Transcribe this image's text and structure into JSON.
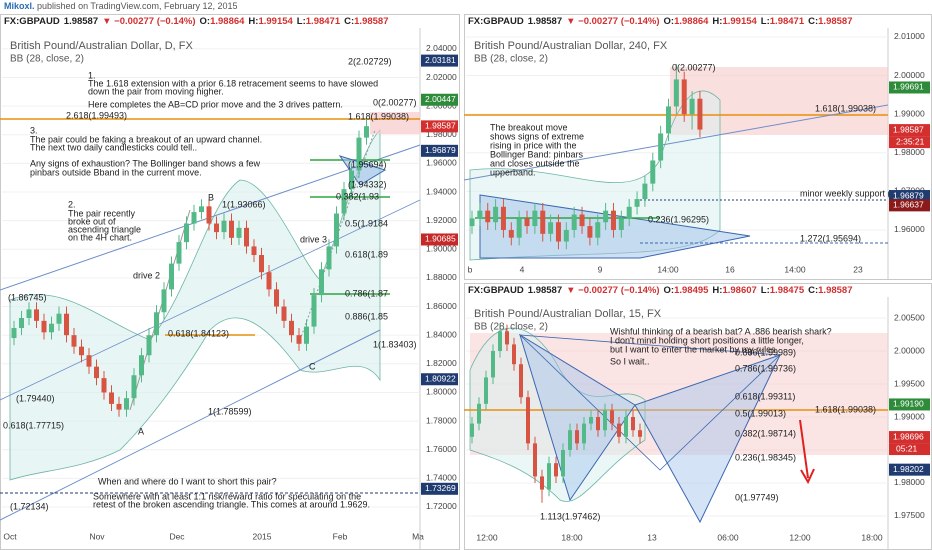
{
  "header": {
    "author": "Mikoxl.",
    "note": "published on TradingView.com, February 12, 2015"
  },
  "panels": [
    {
      "type": "candlestick",
      "quote": {
        "symbol": "FX:GBPAUD",
        "last": "1.98587",
        "change": "▼ −0.00277 (−0.14%)",
        "o_label": "O:",
        "o": "1.98864",
        "h_label": "H:",
        "h": "1.99154",
        "l_label": "L:",
        "l": "1.98471",
        "c_label": "C:",
        "c": "1.98587"
      },
      "title": "British Pound/Australian Dollar, D, FX",
      "indicator": "BB (28, close, 2)",
      "ylim": [
        1.706,
        2.049
      ],
      "yticks": [
        {
          "value": 2.04,
          "label": "2.04000"
        },
        {
          "value": 2.02,
          "label": "2.02000"
        },
        {
          "value": 2.0,
          "label": "2.00000"
        },
        {
          "value": 1.98,
          "label": "1.98000"
        },
        {
          "value": 1.96,
          "label": "1.96000"
        },
        {
          "value": 1.94,
          "label": "1.94000"
        },
        {
          "value": 1.92,
          "label": "1.92000"
        },
        {
          "value": 1.9,
          "label": "1.90000"
        },
        {
          "value": 1.88,
          "label": "1.88000"
        },
        {
          "value": 1.86,
          "label": "1.86000"
        },
        {
          "value": 1.84,
          "label": "1.84000"
        },
        {
          "value": 1.82,
          "label": "1.82000"
        },
        {
          "value": 1.8,
          "label": "1.80000"
        },
        {
          "value": 1.78,
          "label": "1.78000"
        },
        {
          "value": 1.76,
          "label": "1.76000"
        },
        {
          "value": 1.74,
          "label": "1.74000"
        },
        {
          "value": 1.72,
          "label": "1.72000"
        }
      ],
      "xlabels": [
        "Oct",
        "Nov",
        "Dec",
        "2015",
        "Feb",
        "Ma"
      ],
      "price_tags": [
        {
          "value": 2.03181,
          "color": "#1f3b70"
        },
        {
          "value": 2.00447,
          "color": "#2e8b3a"
        },
        {
          "value": 1.98587,
          "color": "#d32f2f"
        },
        {
          "value": 1.96879,
          "color": "#1f3b70"
        },
        {
          "value": 1.90685,
          "color": "#c62828"
        },
        {
          "value": 1.80922,
          "color": "#1f3b70"
        },
        {
          "value": 1.73269,
          "color": "#1f3b70"
        }
      ],
      "candles": [
        [
          1.838,
          1.85,
          1.833,
          1.845
        ],
        [
          1.845,
          1.857,
          1.84,
          1.852
        ],
        [
          1.852,
          1.863,
          1.847,
          1.858
        ],
        [
          1.858,
          1.863,
          1.845,
          1.85
        ],
        [
          1.85,
          1.855,
          1.837,
          1.842
        ],
        [
          1.842,
          1.853,
          1.837,
          1.848
        ],
        [
          1.848,
          1.86,
          1.843,
          1.855
        ],
        [
          1.855,
          1.86,
          1.835,
          1.84
        ],
        [
          1.84,
          1.845,
          1.827,
          1.832
        ],
        [
          1.832,
          1.837,
          1.821,
          1.826
        ],
        [
          1.826,
          1.831,
          1.813,
          1.818
        ],
        [
          1.818,
          1.823,
          1.805,
          1.81
        ],
        [
          1.81,
          1.815,
          1.795,
          1.8
        ],
        [
          1.8,
          1.805,
          1.787,
          1.792
        ],
        [
          1.792,
          1.797,
          1.783,
          1.788
        ],
        [
          1.788,
          1.801,
          1.783,
          1.796
        ],
        [
          1.796,
          1.817,
          1.791,
          1.812
        ],
        [
          1.812,
          1.831,
          1.807,
          1.826
        ],
        [
          1.826,
          1.845,
          1.821,
          1.84
        ],
        [
          1.84,
          1.861,
          1.835,
          1.856
        ],
        [
          1.856,
          1.877,
          1.851,
          1.872
        ],
        [
          1.872,
          1.895,
          1.867,
          1.89
        ],
        [
          1.89,
          1.91,
          1.885,
          1.905
        ],
        [
          1.905,
          1.923,
          1.9,
          1.918
        ],
        [
          1.918,
          1.931,
          1.913,
          1.926
        ],
        [
          1.926,
          1.935,
          1.921,
          1.93
        ],
        [
          1.93,
          1.935,
          1.913,
          1.918
        ],
        [
          1.918,
          1.923,
          1.907,
          1.912
        ],
        [
          1.912,
          1.925,
          1.907,
          1.92
        ],
        [
          1.92,
          1.925,
          1.903,
          1.908
        ],
        [
          1.908,
          1.92,
          1.903,
          1.915
        ],
        [
          1.915,
          1.92,
          1.897,
          1.902
        ],
        [
          1.902,
          1.907,
          1.891,
          1.896
        ],
        [
          1.896,
          1.901,
          1.879,
          1.884
        ],
        [
          1.884,
          1.889,
          1.867,
          1.872
        ],
        [
          1.872,
          1.877,
          1.855,
          1.86
        ],
        [
          1.86,
          1.865,
          1.845,
          1.85
        ],
        [
          1.85,
          1.855,
          1.835,
          1.84
        ],
        [
          1.84,
          1.845,
          1.829,
          1.834
        ],
        [
          1.834,
          1.851,
          1.829,
          1.846
        ],
        [
          1.846,
          1.873,
          1.841,
          1.868
        ],
        [
          1.868,
          1.891,
          1.863,
          1.886
        ],
        [
          1.886,
          1.907,
          1.881,
          1.902
        ],
        [
          1.902,
          1.93,
          1.897,
          1.925
        ],
        [
          1.925,
          1.947,
          1.92,
          1.942
        ],
        [
          1.942,
          1.96,
          1.937,
          1.955
        ],
        [
          1.955,
          1.983,
          1.95,
          1.978
        ],
        [
          1.978,
          1.991,
          1.973,
          1.986
        ]
      ],
      "notes": [
        "2(2.02729)",
        "1.",
        "The 1.618 extension with a prior 6.18 retracement seems to have slowed",
        "down the pair from moving higher.",
        "Here completes the AB=CD prior move and the 3 drives pattern.",
        "0(2.00277)",
        "2.618(1.99493)",
        "1.618(1.99038)",
        "3.",
        "The pair could be faking a breakout of an upward channel.",
        "The next two daily candlesticks could tell..",
        "Any signs of exhaustion? The Bollinger band shows a few",
        "pinbars outside Bband in the current move.",
        "(1.95694)",
        "(1.94332)",
        "0.382(1.93",
        "B",
        "1(1.93066)",
        "2.",
        "The pair recently",
        "broke out of",
        "ascending triangle",
        "on the 4H chart.",
        "0.5(1.9184",
        "drive 3",
        "0.618(1.89",
        "drive 2",
        "(1.86745)",
        "0.786(1.87",
        "0.886(1.85",
        "0.618(1.84123)",
        "1(1.83403)",
        "C",
        "(1.79440)",
        "1(1.78599)",
        "0.618(1.77715)",
        "A",
        "When and where do I want to short this pair?",
        "Somewhere with at least 1:1 risk/reward ratio for speculating on the",
        "retest of the broken ascending triangle. This comes at around 1.9629.",
        "(1.72134)"
      ]
    },
    {
      "type": "candlestick",
      "quote": {
        "symbol": "FX:GBPAUD",
        "last": "1.98587",
        "change": "▼ −0.00277 (−0.14%)",
        "o_label": "O:",
        "o": "1.98864",
        "h_label": "H:",
        "h": "1.99154",
        "l_label": "L:",
        "l": "1.98471",
        "c_label": "C:",
        "c": "1.98587"
      },
      "title": "British Pound/Australian Dollar, 240, FX",
      "indicator": "BB (28, close, 2)",
      "ylim": [
        1.9517,
        2.0118
      ],
      "yticks": [
        {
          "value": 2.01,
          "label": "2.01000"
        },
        {
          "value": 2.0,
          "label": "2.00000"
        },
        {
          "value": 1.99,
          "label": "1.99000"
        },
        {
          "value": 1.98,
          "label": "1.98000"
        },
        {
          "value": 1.97,
          "label": "1.97000"
        },
        {
          "value": 1.96,
          "label": "1.96000"
        }
      ],
      "xlabels": [
        "b",
        "4",
        "9",
        "14:00",
        "16",
        "14:00",
        "23"
      ],
      "price_tags": [
        {
          "value": 1.99691,
          "color": "#2e8b3a"
        },
        {
          "value": 1.98587,
          "color": "#d32f2f"
        },
        {
          "value": 1.96879,
          "color": "#1f3b70"
        },
        {
          "value": 1.96637,
          "color": "#8b1a1a"
        }
      ],
      "countdown": "2:35:21",
      "candles": [
        [
          1.961,
          1.965,
          1.959,
          1.963
        ],
        [
          1.963,
          1.967,
          1.961,
          1.965
        ],
        [
          1.965,
          1.967,
          1.96,
          1.962
        ],
        [
          1.962,
          1.968,
          1.96,
          1.966
        ],
        [
          1.966,
          1.968,
          1.958,
          1.96
        ],
        [
          1.96,
          1.962,
          1.956,
          1.958
        ],
        [
          1.958,
          1.965,
          1.956,
          1.963
        ],
        [
          1.963,
          1.965,
          1.959,
          1.961
        ],
        [
          1.961,
          1.967,
          1.959,
          1.965
        ],
        [
          1.965,
          1.967,
          1.957,
          1.959
        ],
        [
          1.959,
          1.964,
          1.957,
          1.962
        ],
        [
          1.962,
          1.964,
          1.955,
          1.957
        ],
        [
          1.957,
          1.962,
          1.955,
          1.96
        ],
        [
          1.96,
          1.966,
          1.958,
          1.964
        ],
        [
          1.964,
          1.966,
          1.959,
          1.961
        ],
        [
          1.961,
          1.963,
          1.956,
          1.958
        ],
        [
          1.958,
          1.964,
          1.956,
          1.962
        ],
        [
          1.962,
          1.967,
          1.96,
          1.965
        ],
        [
          1.965,
          1.967,
          1.958,
          1.96
        ],
        [
          1.96,
          1.965,
          1.958,
          1.963
        ],
        [
          1.963,
          1.968,
          1.961,
          1.966
        ],
        [
          1.966,
          1.97,
          1.964,
          1.968
        ],
        [
          1.968,
          1.974,
          1.966,
          1.972
        ],
        [
          1.972,
          1.98,
          1.97,
          1.978
        ],
        [
          1.978,
          1.987,
          1.976,
          1.985
        ],
        [
          1.985,
          1.994,
          1.983,
          1.992
        ],
        [
          1.992,
          2.003,
          1.99,
          1.999
        ],
        [
          1.999,
          2.001,
          1.988,
          1.99
        ],
        [
          1.99,
          1.996,
          1.986,
          1.994
        ],
        [
          1.994,
          1.996,
          1.984,
          1.986
        ]
      ],
      "notes": [
        "0(2.00277)",
        "1.618(1.99038)",
        "The breakout move",
        "shows signs of extreme",
        "rising in price with the",
        "Bollinger Band: pinbars",
        "and closes outside the",
        "upperband.",
        "minor weekly support (pinbar)",
        "0.236(1.96295)",
        "1.272(1.95694)"
      ]
    },
    {
      "type": "candlestick",
      "quote": {
        "symbol": "FX:GBPAUD",
        "last": "1.98587",
        "change": "▼ −0.00277 (−0.14%)",
        "o_label": "O:",
        "o": "1.98495",
        "h_label": "H:",
        "h": "1.98607",
        "l_label": "L:",
        "l": "1.98475",
        "c_label": "C:",
        "c": "1.98587"
      },
      "title": "British Pound/Australian Dollar, 15, FX",
      "indicator": "BB (28, close, 2)",
      "ylim": [
        1.97318,
        2.00773
      ],
      "yticks": [
        {
          "value": 2.005,
          "label": "2.00500"
        },
        {
          "value": 2.0,
          "label": "2.00000"
        },
        {
          "value": 1.995,
          "label": "1.99500"
        },
        {
          "value": 1.99,
          "label": "1.99000"
        },
        {
          "value": 1.985,
          "label": "1.98500"
        },
        {
          "value": 1.98,
          "label": "1.98000"
        },
        {
          "value": 1.975,
          "label": "1.97500"
        }
      ],
      "xlabels": [
        "12:00",
        "18:00",
        "13",
        "06:00",
        "12:00",
        "18:00"
      ],
      "price_tags": [
        {
          "value": 1.9919,
          "label": "1.99190",
          "color": "#2e8b3a"
        },
        {
          "value": 1.98696,
          "color": "#d32f2f"
        },
        {
          "value": 1.98202,
          "color": "#1f3b70"
        }
      ],
      "countdown": "05:21",
      "candles": [
        [
          1.987,
          1.99,
          1.986,
          1.989
        ],
        [
          1.989,
          1.993,
          1.988,
          1.992
        ],
        [
          1.992,
          1.997,
          1.991,
          1.996
        ],
        [
          1.996,
          2.001,
          1.995,
          2.0
        ],
        [
          2.0,
          2.004,
          1.999,
          2.003
        ],
        [
          2.003,
          2.004,
          2.0,
          2.001
        ],
        [
          2.001,
          2.002,
          1.997,
          1.998
        ],
        [
          1.998,
          1.999,
          1.992,
          1.993
        ],
        [
          1.993,
          1.994,
          1.985,
          1.986
        ],
        [
          1.986,
          1.987,
          1.98,
          1.981
        ],
        [
          1.981,
          1.982,
          1.977,
          1.979
        ],
        [
          1.979,
          1.984,
          1.978,
          1.983
        ],
        [
          1.983,
          1.984,
          1.98,
          1.981
        ],
        [
          1.981,
          1.986,
          1.98,
          1.985
        ],
        [
          1.985,
          1.989,
          1.984,
          1.988
        ],
        [
          1.988,
          1.989,
          1.985,
          1.986
        ],
        [
          1.986,
          1.99,
          1.985,
          1.989
        ],
        [
          1.989,
          1.991,
          1.988,
          1.99
        ],
        [
          1.99,
          1.991,
          1.987,
          1.988
        ],
        [
          1.988,
          1.992,
          1.987,
          1.991
        ],
        [
          1.991,
          1.992,
          1.988,
          1.989
        ],
        [
          1.989,
          1.99,
          1.986,
          1.987
        ],
        [
          1.987,
          1.991,
          1.986,
          1.99
        ],
        [
          1.99,
          1.991,
          1.987,
          1.988
        ],
        [
          1.988,
          1.989,
          1.986,
          1.987
        ]
      ],
      "notes": [
        "Wishful thinking of a bearish bat? A .886 bearish shark?",
        "I don't mind holding short positions a little longer,",
        "but I want to enter the market by my rules.",
        "So I wait..",
        "0.886(1.99989)",
        "0.786(1.99736)",
        "0.618(1.99311)",
        "0.5(1.99013)",
        "1.618(1.99038)",
        "0.382(1.98714)",
        "0.236(1.98345)",
        "0(1.97749)",
        "1.113(1.97462)"
      ]
    }
  ]
}
